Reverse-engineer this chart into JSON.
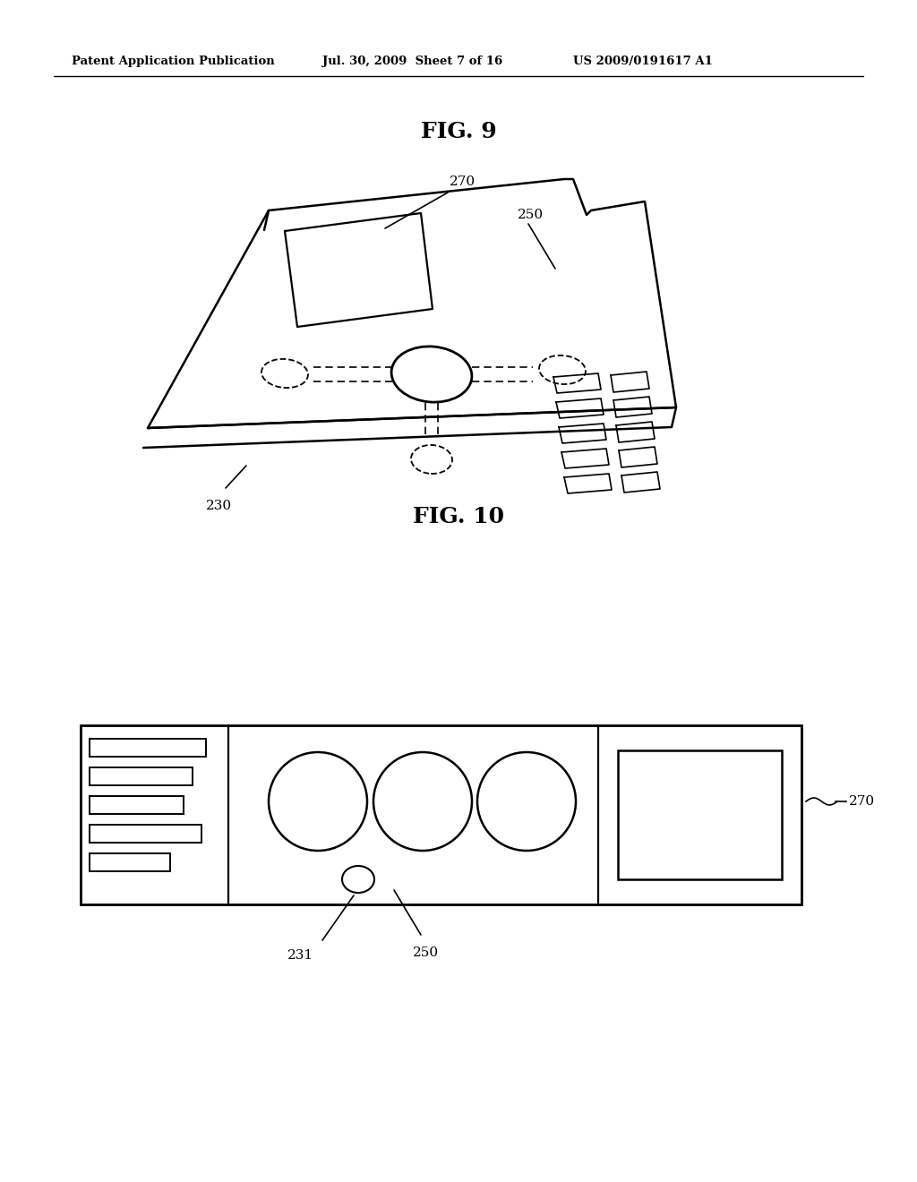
{
  "fig_title1": "FIG. 9",
  "fig_title2": "FIG. 10",
  "header_left": "Patent Application Publication",
  "header_mid": "Jul. 30, 2009  Sheet 7 of 16",
  "header_right": "US 2009/0191617 A1",
  "label_270": "270",
  "label_250": "250",
  "label_230": "230",
  "label_231": "231",
  "bg_color": "#ffffff",
  "line_color": "#000000"
}
